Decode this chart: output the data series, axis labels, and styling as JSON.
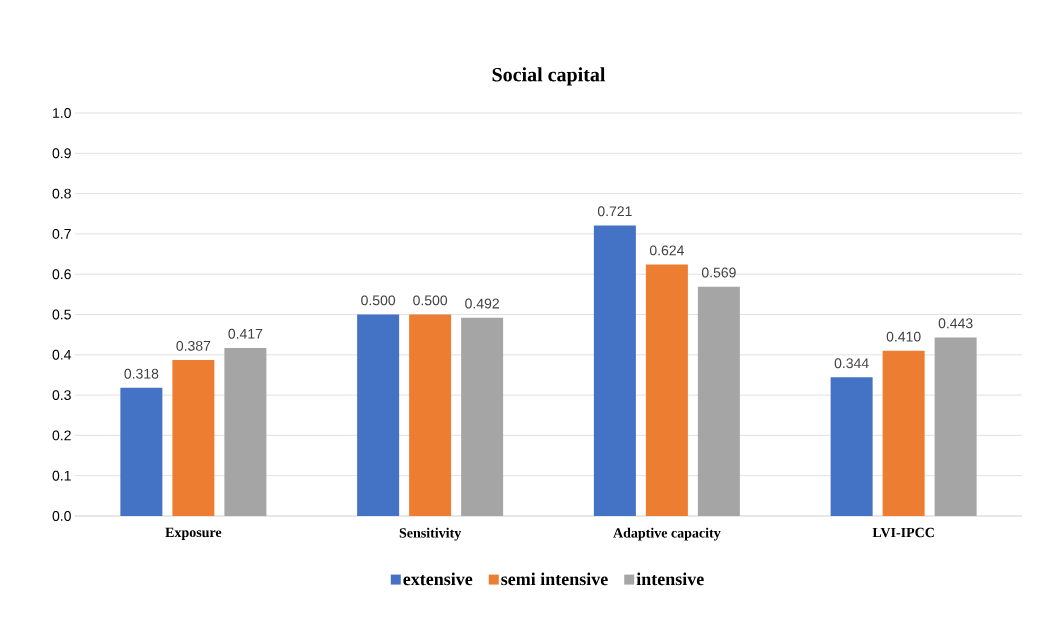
{
  "chart_data": {
    "type": "bar",
    "title": "Social capital",
    "categories": [
      "Exposure",
      "Sensitivity",
      "Adaptive capacity",
      "LVI-IPCC"
    ],
    "series": [
      {
        "name": "extensive",
        "color": "#4472c4",
        "values": [
          0.318,
          0.5,
          0.721,
          0.344
        ],
        "value_labels": [
          "0.318",
          "0.500",
          "0.721",
          "0.344"
        ]
      },
      {
        "name": "semi intensive",
        "color": "#ed7d31",
        "values": [
          0.387,
          0.5,
          0.624,
          0.41
        ],
        "value_labels": [
          "0.387",
          "0.500",
          "0.624",
          "0.410"
        ]
      },
      {
        "name": "intensive",
        "color": "#a5a5a5",
        "values": [
          0.417,
          0.492,
          0.569,
          0.443
        ],
        "value_labels": [
          "0.417",
          "0.492",
          "0.569",
          "0.443"
        ]
      }
    ],
    "ylim": [
      0,
      1.0
    ],
    "yticks": [
      {
        "value": 0,
        "label": "0.0"
      },
      0.1,
      0.2,
      0.3,
      0.4,
      0.5,
      0.6,
      0.7,
      0.8,
      0.9,
      {
        "value": 1.0,
        "label": "1.0"
      }
    ],
    "grid": "y",
    "legend": "bottom"
  }
}
